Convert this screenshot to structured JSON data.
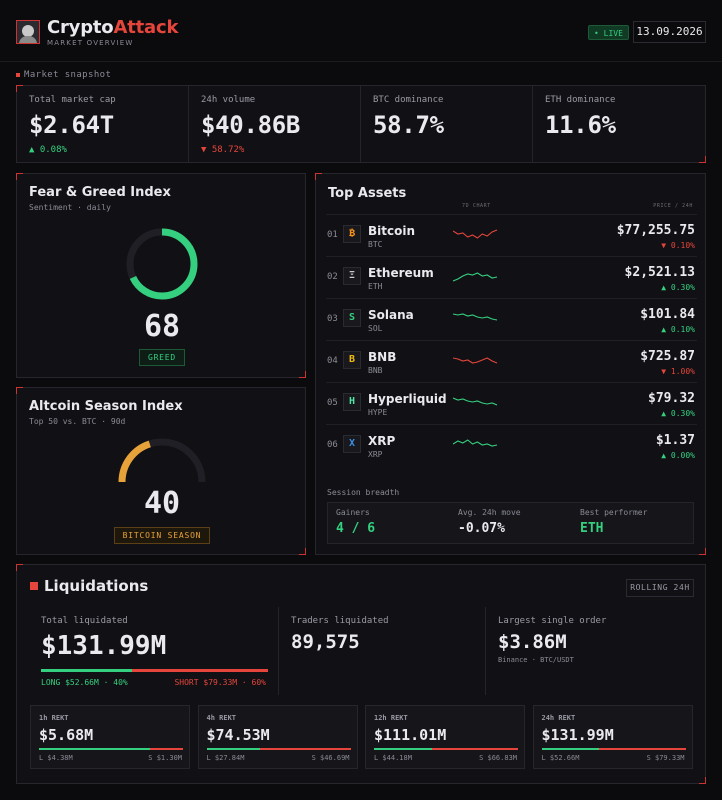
{
  "header": {
    "brand_part1": "Crypto",
    "brand_part2": "Attack",
    "subtitle": "MARKET OVERVIEW",
    "live_label": "• LIVE",
    "date": "13.09.2026"
  },
  "snapshot": {
    "section_label": "Market snapshot",
    "stats": [
      {
        "label": "Total market cap",
        "value": "$2.64T",
        "change": "▲ 0.08%",
        "direction": "up"
      },
      {
        "label": "24h volume",
        "value": "$40.86B",
        "change": "▼ 58.72%",
        "direction": "down"
      },
      {
        "label": "BTC dominance",
        "value": "58.7%",
        "change": "",
        "direction": ""
      },
      {
        "label": "ETH dominance",
        "value": "11.6%",
        "change": "",
        "direction": ""
      }
    ]
  },
  "fear_greed": {
    "title": "Fear & Greed Index",
    "subtitle": "Sentiment · daily",
    "value": "68",
    "level": 0.68,
    "badge": "GREED",
    "color": "#35d07f"
  },
  "altcoin": {
    "title": "Altcoin Season Index",
    "subtitle": "Top 50 vs. BTC · 90d",
    "value": "40",
    "level": 0.4,
    "badge": "BITCOIN SEASON",
    "color": "#e8a23a"
  },
  "assets": {
    "title": "Top Assets",
    "col_chart": "7D CHART",
    "col_price": "PRICE / 24H",
    "items": [
      {
        "index": "01",
        "icon": "bitcoin-icon",
        "glyph": "₿",
        "icon_color": "#f7931a",
        "name": "Bitcoin",
        "ticker": "BTC",
        "price": "$77,255.75",
        "change": "▼ 0.10%",
        "direction": "down"
      },
      {
        "index": "02",
        "icon": "ethereum-icon",
        "glyph": "Ξ",
        "icon_color": "#c9c9d4",
        "name": "Ethereum",
        "ticker": "ETH",
        "price": "$2,521.13",
        "change": "▲ 0.30%",
        "direction": "up"
      },
      {
        "index": "03",
        "icon": "solana-icon",
        "glyph": "S",
        "icon_color": "#35d07f",
        "name": "Solana",
        "ticker": "SOL",
        "price": "$101.84",
        "change": "▲ 0.10%",
        "direction": "up"
      },
      {
        "index": "04",
        "icon": "bnb-icon",
        "glyph": "B",
        "icon_color": "#f0b90b",
        "name": "BNB",
        "ticker": "BNB",
        "price": "$725.87",
        "change": "▼ 1.00%",
        "direction": "down"
      },
      {
        "index": "05",
        "icon": "hyperliquid-icon",
        "glyph": "H",
        "icon_color": "#4fe3a8",
        "name": "Hyperliquid",
        "ticker": "HYPE",
        "price": "$79.32",
        "change": "▲ 0.30%",
        "direction": "up"
      },
      {
        "index": "06",
        "icon": "xrp-icon",
        "glyph": "X",
        "icon_color": "#3b8fe6",
        "name": "XRP",
        "ticker": "XRP",
        "price": "$1.37",
        "change": "▲ 0.00%",
        "direction": "up"
      }
    ],
    "breadth_label": "Session breadth",
    "breadth": [
      {
        "label": "Gainers",
        "value": "4 / 6",
        "color": "#35d07f"
      },
      {
        "label": "Avg. 24h move",
        "value": "-0.07%",
        "color": "#e9e9ee"
      },
      {
        "label": "Best performer",
        "value": "ETH",
        "color": "#35d07f"
      }
    ]
  },
  "liquidations": {
    "title": "Liquidations",
    "rolling": "ROLLING 24H",
    "total_label": "Total liquidated",
    "total": "$131.99M",
    "long_share": 0.4,
    "long_text": "LONG $52.66M · 40%",
    "short_text": "SHORT $79.33M · 60%",
    "traders_label": "Traders liquidated",
    "traders": "89,575",
    "largest_label": "Largest single order",
    "largest": "$3.86M",
    "largest_sub": "Binance · BTC/USDT",
    "windows": [
      {
        "label": "1h REKT",
        "value": "$5.68M",
        "long_share": 0.77,
        "long": "L $4.38M",
        "short": "S $1.30M"
      },
      {
        "label": "4h REKT",
        "value": "$74.53M",
        "long_share": 0.37,
        "long": "L $27.84M",
        "short": "S $46.69M"
      },
      {
        "label": "12h REKT",
        "value": "$111.01M",
        "long_share": 0.4,
        "long": "L $44.18M",
        "short": "S $66.83M"
      },
      {
        "label": "24h REKT",
        "value": "$131.99M",
        "long_share": 0.4,
        "long": "L $52.66M",
        "short": "S $79.33M"
      }
    ]
  }
}
